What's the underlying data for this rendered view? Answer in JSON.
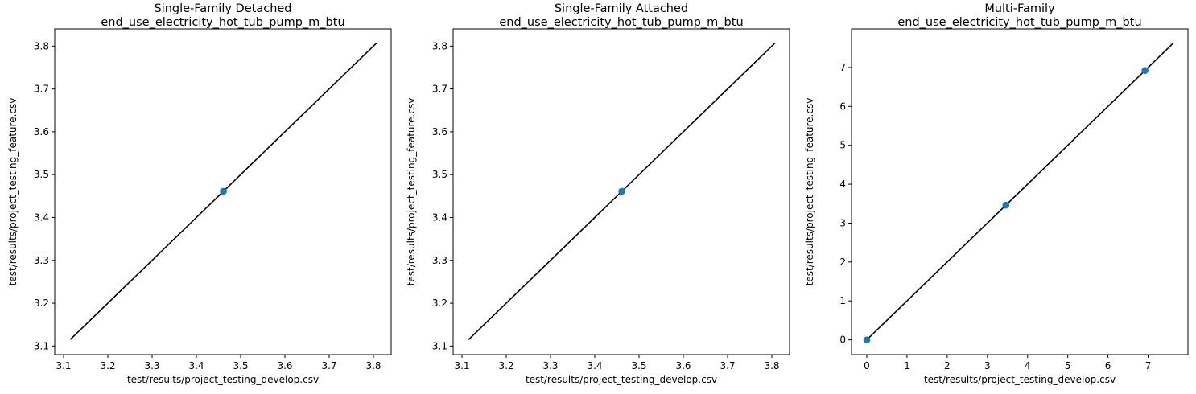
{
  "chart_data": [
    {
      "type": "scatter",
      "title": "Single-Family Detached",
      "subtitle": "end_use_electricity_hot_tub_pump_m_btu",
      "xlabel": "test/results/project_testing_develop.csv",
      "ylabel": "test/results/project_testing_feature.csv",
      "xlim": [
        3.08,
        3.84
      ],
      "ylim": [
        3.08,
        3.84
      ],
      "xticks": [
        3.1,
        3.2,
        3.3,
        3.4,
        3.5,
        3.6,
        3.7,
        3.8
      ],
      "yticks": [
        3.1,
        3.2,
        3.3,
        3.4,
        3.5,
        3.6,
        3.7,
        3.8
      ],
      "xtick_labels": [
        "3.1",
        "3.2",
        "3.3",
        "3.4",
        "3.5",
        "3.6",
        "3.7",
        "3.8"
      ],
      "ytick_labels": [
        "3.1",
        "3.2",
        "3.3",
        "3.4",
        "3.5",
        "3.6",
        "3.7",
        "3.8"
      ],
      "points": [
        {
          "x": 3.461,
          "y": 3.461
        }
      ],
      "reference_line": {
        "from": 3.115,
        "to": 3.807,
        "color": "#000000"
      },
      "point_color": "#1f77b4",
      "grid": false
    },
    {
      "type": "scatter",
      "title": "Single-Family Attached",
      "subtitle": "end_use_electricity_hot_tub_pump_m_btu",
      "xlabel": "test/results/project_testing_develop.csv",
      "ylabel": "test/results/project_testing_feature.csv",
      "xlim": [
        3.08,
        3.84
      ],
      "ylim": [
        3.08,
        3.84
      ],
      "xticks": [
        3.1,
        3.2,
        3.3,
        3.4,
        3.5,
        3.6,
        3.7,
        3.8
      ],
      "yticks": [
        3.1,
        3.2,
        3.3,
        3.4,
        3.5,
        3.6,
        3.7,
        3.8
      ],
      "xtick_labels": [
        "3.1",
        "3.2",
        "3.3",
        "3.4",
        "3.5",
        "3.6",
        "3.7",
        "3.8"
      ],
      "ytick_labels": [
        "3.1",
        "3.2",
        "3.3",
        "3.4",
        "3.5",
        "3.6",
        "3.7",
        "3.8"
      ],
      "points": [
        {
          "x": 3.461,
          "y": 3.461
        }
      ],
      "reference_line": {
        "from": 3.115,
        "to": 3.807,
        "color": "#000000"
      },
      "point_color": "#1f77b4",
      "grid": false
    },
    {
      "type": "scatter",
      "title": "Multi-Family",
      "subtitle": "end_use_electricity_hot_tub_pump_m_btu",
      "xlabel": "test/results/project_testing_develop.csv",
      "ylabel": "test/results/project_testing_feature.csv",
      "xlim": [
        -0.38,
        7.99
      ],
      "ylim": [
        -0.38,
        7.99
      ],
      "xticks": [
        0,
        1,
        2,
        3,
        4,
        5,
        6,
        7
      ],
      "yticks": [
        0,
        1,
        2,
        3,
        4,
        5,
        6,
        7
      ],
      "xtick_labels": [
        "0",
        "1",
        "2",
        "3",
        "4",
        "5",
        "6",
        "7"
      ],
      "ytick_labels": [
        "0",
        "1",
        "2",
        "3",
        "4",
        "5",
        "6",
        "7"
      ],
      "points": [
        {
          "x": 0.0,
          "y": 0.0
        },
        {
          "x": 3.461,
          "y": 3.461
        },
        {
          "x": 6.922,
          "y": 6.922
        }
      ],
      "reference_line": {
        "from": 0.0,
        "to": 7.614,
        "color": "#000000"
      },
      "point_color": "#1f77b4",
      "grid": false
    }
  ]
}
